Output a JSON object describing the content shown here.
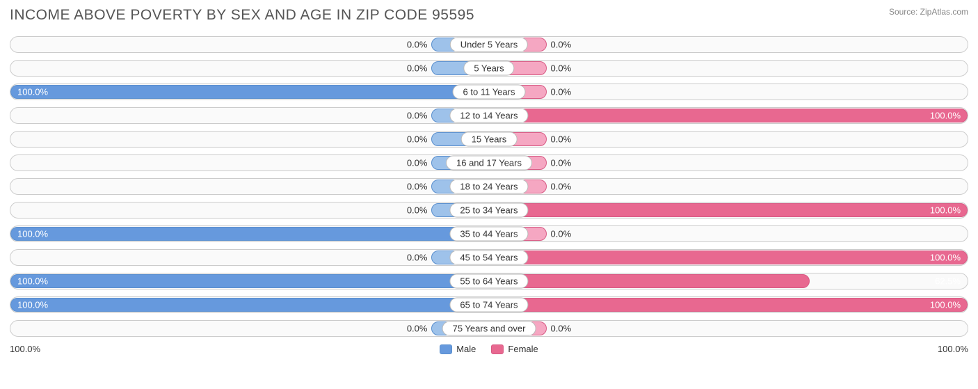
{
  "header": {
    "title": "INCOME ABOVE POVERTY BY SEX AND AGE IN ZIP CODE 95595",
    "source": "Source: ZipAtlas.com"
  },
  "chart": {
    "type": "diverging-bar",
    "min_bar_pct": 12,
    "male": {
      "fill": "#9ec2ea",
      "full_fill": "#6699dd",
      "border": "#5a8fce",
      "legend_label": "Male"
    },
    "female": {
      "fill": "#f5a7c2",
      "full_fill": "#e86890",
      "border": "#d85a84",
      "legend_label": "Female"
    },
    "track": {
      "bg": "#fafafa",
      "border": "#cccccc"
    },
    "axis_left": "100.0%",
    "axis_right": "100.0%",
    "rows": [
      {
        "label": "Under 5 Years",
        "male": 0.0,
        "female": 0.0
      },
      {
        "label": "5 Years",
        "male": 0.0,
        "female": 0.0
      },
      {
        "label": "6 to 11 Years",
        "male": 100.0,
        "female": 0.0
      },
      {
        "label": "12 to 14 Years",
        "male": 0.0,
        "female": 100.0
      },
      {
        "label": "15 Years",
        "male": 0.0,
        "female": 0.0
      },
      {
        "label": "16 and 17 Years",
        "male": 0.0,
        "female": 0.0
      },
      {
        "label": "18 to 24 Years",
        "male": 0.0,
        "female": 0.0
      },
      {
        "label": "25 to 34 Years",
        "male": 0.0,
        "female": 100.0
      },
      {
        "label": "35 to 44 Years",
        "male": 100.0,
        "female": 0.0
      },
      {
        "label": "45 to 54 Years",
        "male": 0.0,
        "female": 100.0
      },
      {
        "label": "55 to 64 Years",
        "male": 100.0,
        "female": 62.5
      },
      {
        "label": "65 to 74 Years",
        "male": 100.0,
        "female": 100.0
      },
      {
        "label": "75 Years and over",
        "male": 0.0,
        "female": 0.0
      }
    ]
  }
}
